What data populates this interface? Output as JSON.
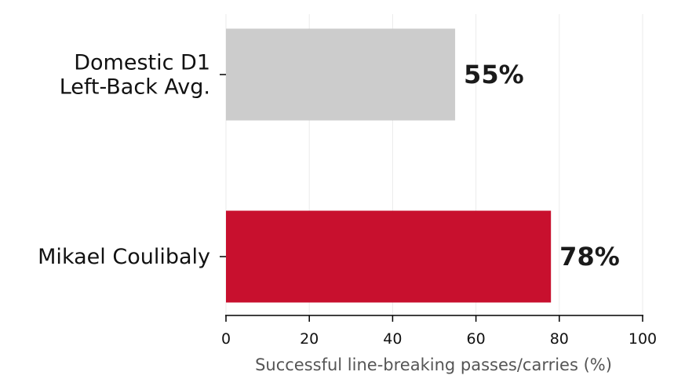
{
  "chart_data": {
    "type": "bar",
    "orientation": "horizontal",
    "categories": [
      "Domestic D1\nLeft-Back Avg.",
      "Mikael Coulibaly"
    ],
    "values": [
      55,
      78
    ],
    "data_labels": [
      "55%",
      "78%"
    ],
    "colors": [
      "#cccccc",
      "#c8102e"
    ],
    "xlabel": "Successful line-breaking passes/carries (%)",
    "ylabel": "",
    "xlim": [
      0,
      100
    ],
    "xticks": [
      0,
      20,
      40,
      60,
      80,
      100
    ],
    "grid": "vertical",
    "legend": "none"
  },
  "colors": {
    "grid": "#ebebeb",
    "axis": "#000000",
    "axis_title": "#555555",
    "text": "#111111"
  }
}
